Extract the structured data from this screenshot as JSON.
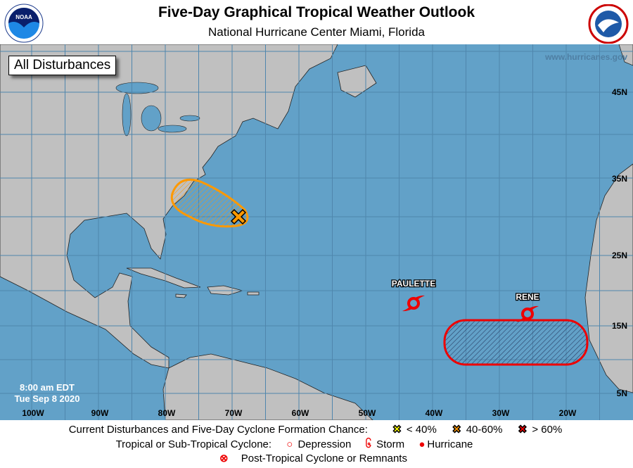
{
  "header": {
    "title": "Five-Day Graphical Tropical Weather Outlook",
    "subtitle": "National Hurricane Center  Miami, Florida"
  },
  "logos": {
    "left": "NOAA",
    "right": "National Weather Service"
  },
  "map": {
    "view_label": "All Disturbances",
    "watermark": "www.hurricanes.gov",
    "issued_time": "8:00 am EDT",
    "issued_date": "Tue Sep 8 2020",
    "lon_labels": [
      "100W",
      "90W",
      "80W",
      "70W",
      "60W",
      "50W",
      "40W",
      "30W",
      "20W"
    ],
    "lat_labels": [
      "45N",
      "35N",
      "25N",
      "15N",
      "5N"
    ],
    "colors": {
      "ocean": "#62a1c8",
      "land": "#c0c0c0",
      "low": "#ffff00",
      "medium": "#ff9900",
      "high": "#ff0000"
    },
    "disturbances": [
      {
        "chance": "40-60%",
        "color": "#ff9900",
        "area": "off southeast US coast"
      },
      {
        "chance": "> 60%",
        "color": "#ff0000",
        "area": "eastern tropical Atlantic"
      }
    ],
    "storms": [
      {
        "name": "PAULETTE",
        "type": "Storm"
      },
      {
        "name": "RENE",
        "type": "Storm"
      }
    ]
  },
  "legend": {
    "line1_label": "Current Disturbances and Five-Day Cyclone Formation Chance:",
    "low": "< 40%",
    "medium": "40-60%",
    "high": "> 60%",
    "line2_label": "Tropical or Sub-Tropical Cyclone:",
    "depression": "Depression",
    "storm": "Storm",
    "hurricane": "Hurricane",
    "post_tropical": "Post-Tropical Cyclone or Remnants"
  }
}
